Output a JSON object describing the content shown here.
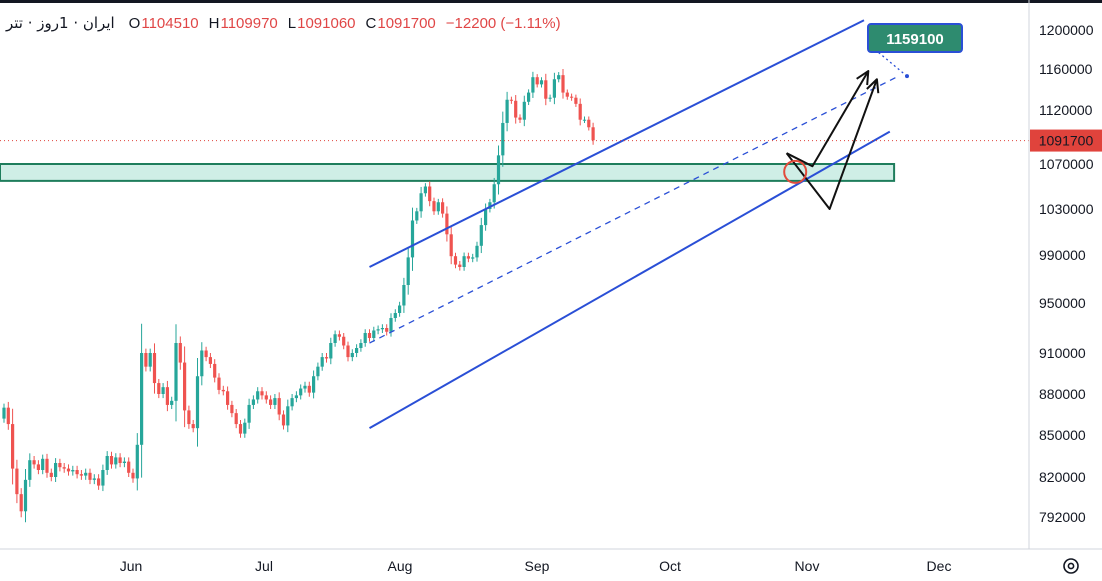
{
  "header": {
    "symbol": "ایران · 1روز · تتر",
    "open_label": "O",
    "open_value": "1104510",
    "high_label": "H",
    "high_value": "1109970",
    "low_label": "L",
    "low_value": "1091060",
    "close_label": "C",
    "close_value": "1091700",
    "change": "−12200 (−1.11%)"
  },
  "colors": {
    "up": "#26a69a",
    "down": "#ef5350",
    "channel": "#2a4fd6",
    "zone_fill": "#cfeee6",
    "zone_border": "#1e7d5c",
    "target_badge": "#2e8b6f",
    "price_badge": "#e0433c",
    "projection": "#111111",
    "circle": "#e24b3b"
  },
  "price_axis": {
    "labels": [
      "1200000",
      "1160000",
      "1120000",
      "1070000",
      "1030000",
      "990000",
      "950000",
      "910000",
      "880000",
      "850000",
      "820000",
      "792000"
    ],
    "current_price_label": "1091700",
    "target_label": "1159100"
  },
  "time_axis": {
    "labels": [
      "Jun",
      "Jul",
      "Aug",
      "Sep",
      "Oct",
      "Nov",
      "Dec"
    ]
  },
  "settings_icon": "gear-icon",
  "chart_data": {
    "type": "candlestick",
    "title": "",
    "ylim": [
      780000,
      1215000
    ],
    "x_unit": "trading days from first visible bar (day 0 ≈ 2025-05-08, Jun ≈ day 24, Jul ≈ day 54, Aug ≈ day 85, Sep ≈ day 116, Oct ≈ day 146, Nov ≈ day 177, Dec ≈ day 207)",
    "xlim": [
      0,
      224
    ],
    "current_price": 1091700,
    "target_price": 1159100,
    "closes": [
      870000,
      858000,
      826000,
      808000,
      796000,
      818000,
      832000,
      829000,
      825000,
      833000,
      823000,
      820000,
      830000,
      827000,
      826000,
      824000,
      825000,
      822000,
      821000,
      823000,
      818000,
      819000,
      814000,
      825000,
      835000,
      829000,
      834000,
      830000,
      831000,
      823000,
      819000,
      843000,
      910000,
      900000,
      910000,
      888000,
      880000,
      885000,
      872000,
      875000,
      918000,
      903000,
      868000,
      858000,
      855000,
      893000,
      912000,
      907000,
      902000,
      892000,
      883000,
      882000,
      872000,
      866000,
      858000,
      851000,
      859000,
      872000,
      876000,
      882000,
      879000,
      876000,
      872000,
      877000,
      865000,
      857000,
      871000,
      877000,
      879000,
      884000,
      886000,
      881000,
      893000,
      900000,
      907000,
      906000,
      918000,
      925000,
      923000,
      916000,
      907000,
      910000,
      914000,
      918000,
      926000,
      922000,
      928000,
      929000,
      930000,
      927000,
      938000,
      942000,
      948000,
      965000,
      988000,
      1020000,
      1028000,
      1044000,
      1050000,
      1037000,
      1028000,
      1036000,
      1026000,
      1008000,
      989000,
      982000,
      980000,
      989000,
      987000,
      988000,
      998000,
      1016000,
      1030000,
      1036000,
      1052000,
      1078000,
      1108000,
      1130000,
      1129000,
      1113000,
      1111000,
      1128000,
      1137000,
      1152000,
      1145000,
      1149000,
      1131000,
      1132000,
      1150000,
      1154000,
      1137000,
      1133000,
      1132000,
      1126000,
      1111000,
      1111000,
      1104000,
      1092000
    ],
    "series": [
      {
        "name": "",
        "type": "candles",
        "values": [
          870000,
          858000,
          826000,
          808000,
          796000,
          818000,
          832000,
          829000,
          825000,
          833000,
          823000,
          820000,
          830000,
          827000,
          826000,
          824000,
          825000,
          822000,
          821000,
          823000,
          818000,
          819000,
          814000,
          825000,
          835000,
          829000,
          834000,
          830000,
          831000,
          823000,
          819000,
          843000,
          910000,
          900000,
          910000,
          888000,
          880000,
          885000,
          872000,
          875000,
          918000,
          903000,
          868000,
          858000,
          855000,
          893000,
          912000,
          907000,
          902000,
          892000,
          883000,
          882000,
          872000,
          866000,
          858000,
          851000,
          859000,
          872000,
          876000,
          882000,
          879000,
          876000,
          872000,
          877000,
          865000,
          857000,
          871000,
          877000,
          879000,
          884000,
          886000,
          881000,
          893000,
          900000,
          907000,
          906000,
          918000,
          925000,
          923000,
          916000,
          907000,
          910000,
          914000,
          918000,
          926000,
          922000,
          928000,
          929000,
          930000,
          927000,
          938000,
          942000,
          948000,
          965000,
          988000,
          1020000,
          1028000,
          1044000,
          1050000,
          1037000,
          1028000,
          1036000,
          1026000,
          1008000,
          989000,
          982000,
          980000,
          989000,
          987000,
          988000,
          998000,
          1016000,
          1030000,
          1036000,
          1052000,
          1078000,
          1108000,
          1130000,
          1129000,
          1113000,
          1111000,
          1128000,
          1137000,
          1152000,
          1145000,
          1149000,
          1131000,
          1132000,
          1150000,
          1154000,
          1137000,
          1133000,
          1132000,
          1126000,
          1111000,
          1111000,
          1104000,
          1092000
        ]
      }
    ],
    "drawings": {
      "channel_upper": [
        [
          85,
          980000
        ],
        [
          200,
          1210000
        ]
      ],
      "channel_lower": [
        [
          85,
          855000
        ],
        [
          206,
          1100000
        ]
      ],
      "channel_mid_dashed": [
        [
          85,
          918000
        ],
        [
          208,
          1153000
        ]
      ],
      "support_zone": {
        "y_top": 1070000,
        "y_bottom": 1055000,
        "x_end": 207
      },
      "projection_1": [
        [
          182,
          1080000
        ],
        [
          192,
          1030000
        ],
        [
          203,
          1150000
        ]
      ],
      "projection_2": [
        [
          182,
          1080000
        ],
        [
          188,
          1068000
        ],
        [
          201,
          1158000
        ]
      ],
      "circle_marker": [
        184,
        1063000
      ]
    }
  }
}
